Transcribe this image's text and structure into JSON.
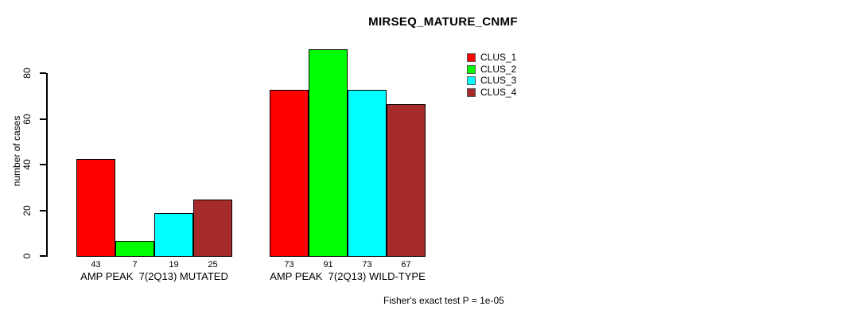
{
  "chart_data": {
    "type": "bar",
    "title": "MIRSEQ_MATURE_CNMF",
    "xlabel": "",
    "ylabel": "number of cases",
    "ylim": [
      0,
      80
    ],
    "yticks": [
      0,
      20,
      40,
      60,
      80
    ],
    "grid": false,
    "legend_position": "top-right",
    "bar_borders": "#000000",
    "background": "#ffffff",
    "series": [
      {
        "name": "CLUS_1",
        "color": "#FF0000"
      },
      {
        "name": "CLUS_2",
        "color": "#00FF00"
      },
      {
        "name": "CLUS_3",
        "color": "#00FFFF"
      },
      {
        "name": "CLUS_4",
        "color": "#A52A2A"
      }
    ],
    "groups": [
      {
        "label": "AMP PEAK  7(2Q13) MUTATED",
        "values": [
          43,
          7,
          19,
          25
        ]
      },
      {
        "label": "AMP PEAK  7(2Q13) WILD-TYPE",
        "values": [
          73,
          91,
          73,
          67
        ]
      }
    ],
    "annotation": "Fisher's exact test P = 1e-05"
  }
}
